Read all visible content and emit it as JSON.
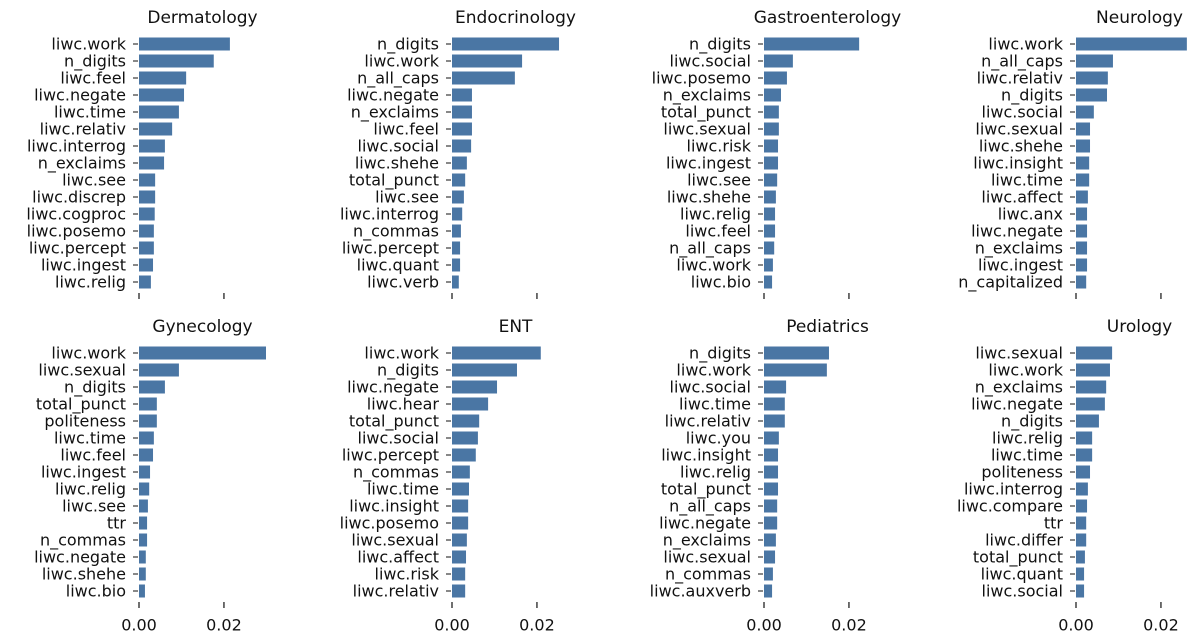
{
  "chart_data": [
    {
      "type": "barh",
      "title": "Dermatology",
      "color": "#4a76a4",
      "xlim": [
        0,
        0.0299
      ],
      "xticks": [
        0,
        0.02
      ],
      "categories": [
        "liwc.work",
        "n_digits",
        "liwc.feel",
        "liwc.negate",
        "liwc.time",
        "liwc.relativ",
        "liwc.interrog",
        "n_exclaims",
        "liwc.see",
        "liwc.discrep",
        "liwc.cogproc",
        "liwc.posemo",
        "liwc.percept",
        "liwc.ingest",
        "liwc.relig"
      ],
      "values": [
        0.0214,
        0.0176,
        0.0111,
        0.0106,
        0.0094,
        0.0078,
        0.0061,
        0.0059,
        0.0038,
        0.0038,
        0.0037,
        0.0035,
        0.0035,
        0.0033,
        0.0028
      ]
    },
    {
      "type": "barh",
      "title": "Endocrinology",
      "color": "#4a76a4",
      "xlim": [
        0,
        0.0299
      ],
      "xticks": [
        0,
        0.02
      ],
      "categories": [
        "n_digits",
        "liwc.work",
        "n_all_caps",
        "liwc.negate",
        "n_exclaims",
        "liwc.feel",
        "liwc.social",
        "liwc.shehe",
        "total_punct",
        "liwc.see",
        "liwc.interrog",
        "n_commas",
        "liwc.percept",
        "liwc.quant",
        "liwc.verb"
      ],
      "values": [
        0.0252,
        0.0165,
        0.0148,
        0.0047,
        0.0047,
        0.0047,
        0.0045,
        0.0035,
        0.0031,
        0.0028,
        0.0024,
        0.0021,
        0.0019,
        0.0019,
        0.0016
      ]
    },
    {
      "type": "barh",
      "title": "Gastroenterology",
      "color": "#4a76a4",
      "xlim": [
        0,
        0.0299
      ],
      "xticks": [
        0,
        0.02
      ],
      "categories": [
        "n_digits",
        "liwc.social",
        "liwc.posemo",
        "n_exclaims",
        "total_punct",
        "liwc.sexual",
        "liwc.risk",
        "liwc.ingest",
        "liwc.see",
        "liwc.shehe",
        "liwc.relig",
        "liwc.feel",
        "n_all_caps",
        "liwc.work",
        "liwc.bio"
      ],
      "values": [
        0.0224,
        0.0068,
        0.0054,
        0.004,
        0.0035,
        0.0035,
        0.0033,
        0.0033,
        0.0031,
        0.0028,
        0.0026,
        0.0026,
        0.0024,
        0.0021,
        0.0019
      ]
    },
    {
      "type": "barh",
      "title": "Neurology",
      "color": "#4a76a4",
      "xlim": [
        0,
        0.0299
      ],
      "xticks": [
        0,
        0.02
      ],
      "categories": [
        "liwc.work",
        "n_all_caps",
        "liwc.relativ",
        "n_digits",
        "liwc.social",
        "liwc.sexual",
        "liwc.shehe",
        "liwc.insight",
        "liwc.time",
        "liwc.affect",
        "liwc.anx",
        "liwc.negate",
        "n_exclaims",
        "liwc.ingest",
        "n_capitalized"
      ],
      "values": [
        0.0261,
        0.0087,
        0.0075,
        0.0073,
        0.0042,
        0.0033,
        0.0033,
        0.0031,
        0.0031,
        0.0028,
        0.0026,
        0.0026,
        0.0026,
        0.0026,
        0.0024
      ]
    },
    {
      "type": "barh",
      "title": "Gynecology",
      "color": "#4a76a4",
      "xlim": [
        0,
        0.0299
      ],
      "xticks": [
        {
          "value": 0,
          "label": "0.00"
        },
        {
          "value": 0.02,
          "label": "0.02"
        }
      ],
      "categories": [
        "liwc.work",
        "liwc.sexual",
        "n_digits",
        "total_punct",
        "politeness",
        "liwc.time",
        "liwc.feel",
        "liwc.ingest",
        "liwc.relig",
        "liwc.see",
        "ttr",
        "n_commas",
        "liwc.negate",
        "liwc.shehe",
        "liwc.bio"
      ],
      "values": [
        0.0299,
        0.0094,
        0.0061,
        0.0042,
        0.0042,
        0.0035,
        0.0033,
        0.0026,
        0.0024,
        0.0021,
        0.0019,
        0.0019,
        0.0016,
        0.0016,
        0.0014
      ]
    },
    {
      "type": "barh",
      "title": "ENT",
      "color": "#4a76a4",
      "xlim": [
        0,
        0.0299
      ],
      "xticks": [
        {
          "value": 0,
          "label": "0.00"
        },
        {
          "value": 0.02,
          "label": "0.02"
        }
      ],
      "categories": [
        "liwc.work",
        "n_digits",
        "liwc.negate",
        "liwc.hear",
        "total_punct",
        "liwc.social",
        "liwc.percept",
        "n_commas",
        "liwc.time",
        "liwc.insight",
        "liwc.posemo",
        "liwc.sexual",
        "liwc.affect",
        "liwc.risk",
        "liwc.relativ"
      ],
      "values": [
        0.0209,
        0.0153,
        0.0106,
        0.0085,
        0.0064,
        0.0061,
        0.0056,
        0.0042,
        0.004,
        0.0038,
        0.0038,
        0.0035,
        0.0033,
        0.0031,
        0.0031
      ]
    },
    {
      "type": "barh",
      "title": "Pediatrics",
      "color": "#4a76a4",
      "xlim": [
        0,
        0.0299
      ],
      "xticks": [
        {
          "value": 0,
          "label": "0.00"
        },
        {
          "value": 0.02,
          "label": "0.02"
        }
      ],
      "categories": [
        "n_digits",
        "liwc.work",
        "liwc.social",
        "liwc.time",
        "liwc.relativ",
        "liwc.you",
        "liwc.insight",
        "liwc.relig",
        "total_punct",
        "n_all_caps",
        "liwc.negate",
        "n_exclaims",
        "liwc.sexual",
        "n_commas",
        "liwc.auxverb"
      ],
      "values": [
        0.0153,
        0.0148,
        0.0052,
        0.0049,
        0.0049,
        0.0035,
        0.0033,
        0.0033,
        0.0033,
        0.0031,
        0.0031,
        0.0028,
        0.0026,
        0.0021,
        0.0019
      ]
    },
    {
      "type": "barh",
      "title": "Urology",
      "color": "#4a76a4",
      "xlim": [
        0,
        0.0299
      ],
      "xticks": [
        {
          "value": 0,
          "label": "0.00"
        },
        {
          "value": 0.02,
          "label": "0.02"
        }
      ],
      "categories": [
        "liwc.sexual",
        "liwc.work",
        "n_exclaims",
        "liwc.negate",
        "n_digits",
        "liwc.relig",
        "liwc.time",
        "politeness",
        "liwc.interrog",
        "liwc.compare",
        "ttr",
        "liwc.differ",
        "total_punct",
        "liwc.quant",
        "liwc.social"
      ],
      "values": [
        0.0085,
        0.008,
        0.0071,
        0.0068,
        0.0054,
        0.0038,
        0.0038,
        0.0033,
        0.0028,
        0.0026,
        0.0024,
        0.0024,
        0.0021,
        0.0019,
        0.0019
      ]
    }
  ]
}
